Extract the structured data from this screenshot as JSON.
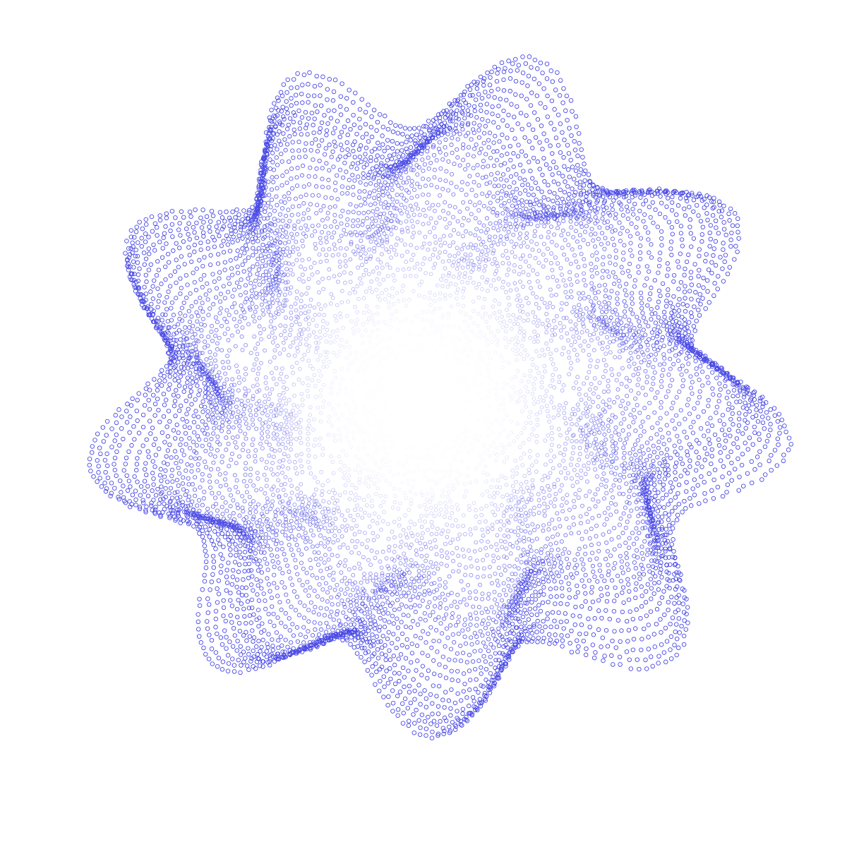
{
  "artwork": {
    "subject": "swirl-dot-pattern",
    "stroke_color": "#4a4ae6",
    "center_glow_color": "#ffffff",
    "background_color": "#ffffff",
    "arm_count": 9,
    "ring_count": 46
  }
}
